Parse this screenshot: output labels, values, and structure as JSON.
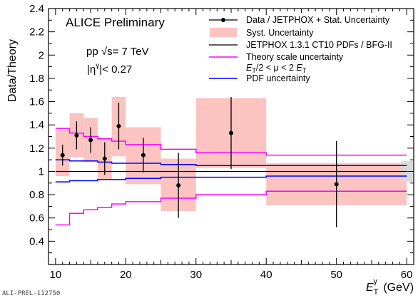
{
  "chart_data": {
    "type": "scatter",
    "title": "ALICE Preliminary",
    "annotations": [
      "pp √s= 7 TeV",
      "|η^γ|< 0.27"
    ],
    "xlabel": "E_T^γ (GeV)",
    "ylabel": "Data/Theory",
    "xlim": [
      9,
      61
    ],
    "ylim": [
      0.2,
      2.4
    ],
    "xticks": [
      10,
      20,
      30,
      40,
      50,
      60
    ],
    "yticks": [
      0.4,
      0.6,
      0.8,
      1,
      1.2,
      1.4,
      1.6,
      1.8,
      2,
      2.2,
      2.4
    ],
    "grid": false,
    "legend_position": "top-right",
    "legend": [
      {
        "label": "Data / JETPHOX + Stat. Uncertainty",
        "color": "#000000",
        "style": "marker"
      },
      {
        "label": "Syst. Uncertainty",
        "color": "#fbc4c0",
        "style": "box"
      },
      {
        "label": "JETPHOX 1.3.1 CT10 PDFs / BFG-II",
        "color": "#000000",
        "style": "line"
      },
      {
        "label": "Theory scale uncertainty",
        "color": "#ff00ff",
        "style": "line"
      },
      {
        "label": "E_T/2 < μ < 2 E_T",
        "color": "#ff00ff",
        "style": "none"
      },
      {
        "label": "PDF uncertainty",
        "color": "#0000ff",
        "style": "line"
      }
    ],
    "series": [
      {
        "name": "Data / JETPHOX + Stat. Uncertainty",
        "x": [
          11,
          13,
          15,
          17,
          19,
          22.5,
          27.5,
          35,
          50
        ],
        "y": [
          1.14,
          1.31,
          1.27,
          1.11,
          1.39,
          1.14,
          0.88,
          1.33,
          0.89
        ],
        "stat_err": [
          0.09,
          0.12,
          0.11,
          0.14,
          0.2,
          0.15,
          0.28,
          0.31,
          0.37
        ]
      },
      {
        "name": "Syst. Uncertainty",
        "bins": [
          {
            "x_lo": 10,
            "x_hi": 12,
            "lo": 0.96,
            "hi": 1.36
          },
          {
            "x_lo": 12,
            "x_hi": 14,
            "lo": 1.12,
            "hi": 1.5
          },
          {
            "x_lo": 14,
            "x_hi": 16,
            "lo": 1.08,
            "hi": 1.46
          },
          {
            "x_lo": 16,
            "x_hi": 18,
            "lo": 0.93,
            "hi": 1.29
          },
          {
            "x_lo": 18,
            "x_hi": 20,
            "lo": 1.13,
            "hi": 1.64
          },
          {
            "x_lo": 20,
            "x_hi": 25,
            "lo": 0.89,
            "hi": 1.38
          },
          {
            "x_lo": 25,
            "x_hi": 30,
            "lo": 0.66,
            "hi": 1.11
          },
          {
            "x_lo": 30,
            "x_hi": 40,
            "lo": 1.03,
            "hi": 1.63
          },
          {
            "x_lo": 40,
            "x_hi": 60,
            "lo": 0.71,
            "hi": 1.07
          }
        ]
      },
      {
        "name": "JETPHOX 1.3.1 CT10 PDFs / BFG-II",
        "x": [
          10,
          60
        ],
        "y": [
          1.0,
          1.0
        ]
      },
      {
        "name": "Theory scale uncertainty (upper)",
        "x": [
          10,
          12,
          12,
          14,
          14,
          16,
          16,
          18,
          18,
          20,
          20,
          25,
          25,
          30,
          30,
          40,
          40,
          60
        ],
        "y": [
          1.37,
          1.37,
          1.33,
          1.33,
          1.3,
          1.3,
          1.28,
          1.28,
          1.26,
          1.26,
          1.23,
          1.23,
          1.19,
          1.19,
          1.16,
          1.16,
          1.14,
          1.14
        ]
      },
      {
        "name": "Theory scale uncertainty (lower)",
        "x": [
          10,
          12,
          12,
          14,
          14,
          16,
          16,
          18,
          18,
          20,
          20,
          25,
          25,
          30,
          30,
          40,
          40,
          60
        ],
        "y": [
          0.54,
          0.54,
          0.64,
          0.64,
          0.67,
          0.67,
          0.69,
          0.69,
          0.72,
          0.72,
          0.74,
          0.74,
          0.77,
          0.77,
          0.8,
          0.8,
          0.83,
          0.83
        ]
      },
      {
        "name": "PDF uncertainty (upper)",
        "x": [
          10,
          12,
          12,
          14,
          14,
          16,
          16,
          18,
          18,
          20,
          20,
          25,
          25,
          30,
          30,
          40,
          40,
          60
        ],
        "y": [
          1.1,
          1.1,
          1.09,
          1.09,
          1.09,
          1.09,
          1.08,
          1.08,
          1.07,
          1.07,
          1.07,
          1.07,
          1.06,
          1.06,
          1.05,
          1.05,
          1.05,
          1.05
        ]
      },
      {
        "name": "PDF uncertainty (lower)",
        "x": [
          10,
          12,
          12,
          14,
          14,
          16,
          16,
          18,
          18,
          20,
          20,
          25,
          25,
          30,
          30,
          40,
          40,
          60
        ],
        "y": [
          0.91,
          0.91,
          0.92,
          0.92,
          0.92,
          0.92,
          0.93,
          0.93,
          0.93,
          0.93,
          0.94,
          0.94,
          0.95,
          0.95,
          0.95,
          0.95,
          0.96,
          0.96
        ]
      },
      {
        "name": "Normalization uncertainty",
        "x_lo": 59.2,
        "x_hi": 61,
        "lo": 0.91,
        "hi": 1.09
      }
    ]
  },
  "footer_label": "ALI-PREL-112750",
  "colors": {
    "syst": "#fbc4c0",
    "norm_band": "#d9d9d9",
    "scale": "#ff00ff",
    "pdf": "#0000ff",
    "data": "#000000"
  }
}
